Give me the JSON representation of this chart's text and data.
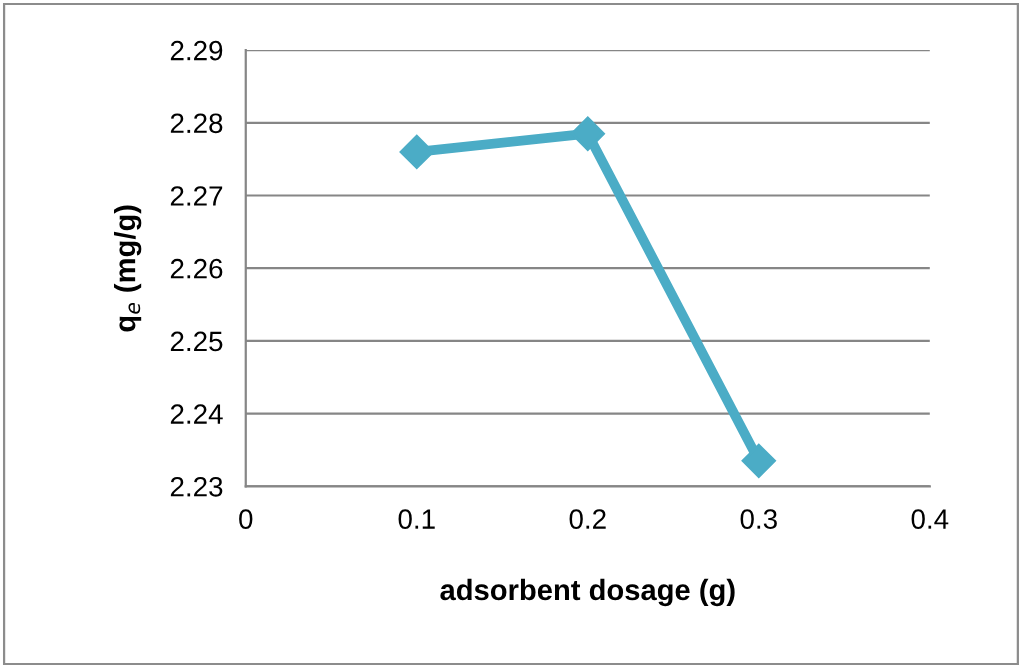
{
  "chart_data": {
    "type": "line",
    "xlabel": "adsorbent dosage (g)",
    "ylabel": "q$_{e}$ (mg/g)",
    "x": [
      0.1,
      0.2,
      0.3
    ],
    "series": [
      {
        "color": "#4bacc6",
        "values": [
          2.276,
          2.2785,
          2.2335
        ]
      }
    ],
    "xlim": [
      0,
      0.4
    ],
    "xticks": [
      0,
      0.1,
      0.2,
      0.3,
      0.4
    ],
    "ylim": [
      2.23,
      2.29
    ],
    "yticks": [
      2.23,
      2.24,
      2.25,
      2.26,
      2.27,
      2.28,
      2.29
    ],
    "grid": "y",
    "marker": "diamond",
    "line_style": "solid"
  }
}
